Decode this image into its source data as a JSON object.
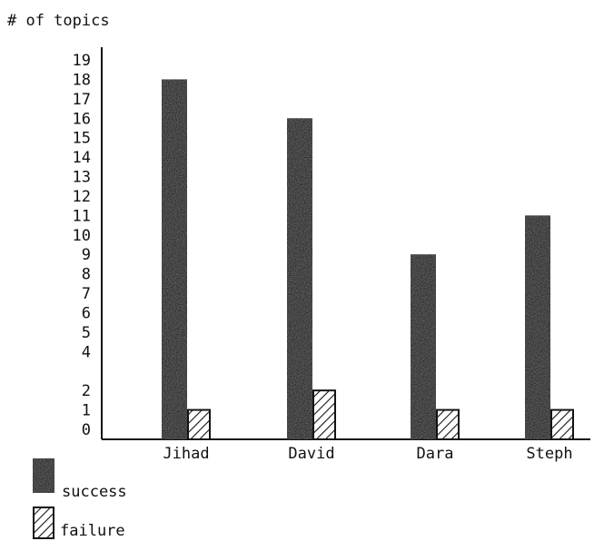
{
  "chart_data": {
    "type": "bar",
    "ylabel": "# of topics",
    "categories": [
      "Jihad",
      "David",
      "Dara",
      "Steph"
    ],
    "series": [
      {
        "name": "success",
        "values": [
          18,
          16,
          9,
          11
        ],
        "fill": "solid",
        "color": "#141414"
      },
      {
        "name": "failure",
        "values": [
          1,
          2,
          1,
          1
        ],
        "fill": "hatched",
        "color": "#141414"
      }
    ],
    "yticks": [
      0,
      1,
      2,
      4,
      5,
      6,
      7,
      8,
      9,
      10,
      11,
      12,
      13,
      14,
      15,
      16,
      17,
      18,
      19
    ],
    "ylim": [
      0,
      19
    ],
    "legend": "bottom-left"
  }
}
